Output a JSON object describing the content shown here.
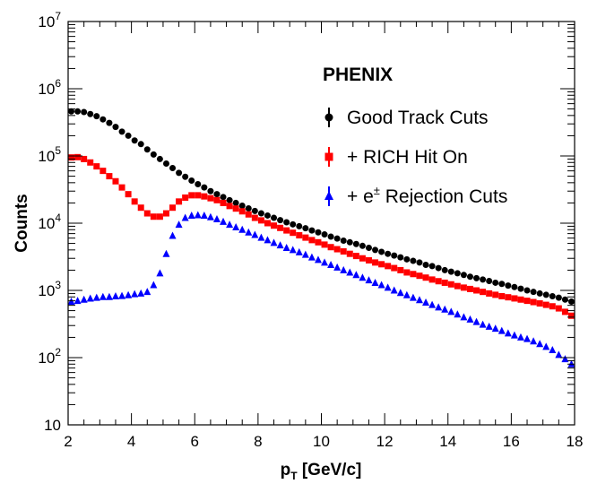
{
  "chart_data": {
    "type": "scatter",
    "x_scale": "linear",
    "y_scale": "log",
    "xlim": [
      2,
      18
    ],
    "ylim": [
      10,
      10000000
    ],
    "x_ticks": [
      2,
      4,
      6,
      8,
      10,
      12,
      14,
      16,
      18
    ],
    "x_tick_labels": [
      "2",
      "4",
      "6",
      "8",
      "10",
      "12",
      "14",
      "16",
      "18"
    ],
    "y_ticks": [
      10,
      100,
      1000,
      10000,
      100000,
      1000000,
      10000000
    ],
    "y_tick_labels": [
      {
        "base": "10",
        "exp": ""
      },
      {
        "base": "10",
        "exp": "2"
      },
      {
        "base": "10",
        "exp": "3"
      },
      {
        "base": "10",
        "exp": "4"
      },
      {
        "base": "10",
        "exp": "5"
      },
      {
        "base": "10",
        "exp": "6"
      },
      {
        "base": "10",
        "exp": "7"
      }
    ],
    "xlabel": {
      "main": "p",
      "sub": "T",
      "rest": " [GeV/c]"
    },
    "ylabel": "Counts",
    "grid": false,
    "legend_position": "top-right",
    "legend_header": "PHENIX",
    "series": [
      {
        "name": "Good Track Cuts",
        "marker": "circle",
        "color": "#000000",
        "x": [
          2.1,
          2.3,
          2.5,
          2.7,
          2.9,
          3.1,
          3.3,
          3.5,
          3.7,
          3.9,
          4.1,
          4.3,
          4.5,
          4.7,
          4.9,
          5.1,
          5.3,
          5.5,
          5.7,
          5.9,
          6.1,
          6.3,
          6.5,
          6.7,
          6.9,
          7.1,
          7.3,
          7.5,
          7.7,
          7.9,
          8.1,
          8.3,
          8.5,
          8.7,
          8.9,
          9.1,
          9.3,
          9.5,
          9.7,
          9.9,
          10.1,
          10.3,
          10.5,
          10.7,
          10.9,
          11.1,
          11.3,
          11.5,
          11.7,
          11.9,
          12.1,
          12.3,
          12.5,
          12.7,
          12.9,
          13.1,
          13.3,
          13.5,
          13.7,
          13.9,
          14.1,
          14.3,
          14.5,
          14.7,
          14.9,
          15.1,
          15.3,
          15.5,
          15.7,
          15.9,
          16.1,
          16.3,
          16.5,
          16.7,
          16.9,
          17.1,
          17.3,
          17.5,
          17.7,
          17.9
        ],
        "y": [
          460000,
          460000,
          450000,
          420000,
          390000,
          350000,
          310000,
          270000,
          230000,
          200000,
          170000,
          150000,
          125000,
          105000,
          90000,
          77000,
          66000,
          56000,
          49000,
          43000,
          38000,
          34000,
          30000,
          27000,
          24500,
          22000,
          20000,
          18200,
          16600,
          15200,
          14000,
          13000,
          12000,
          11100,
          10300,
          9600,
          9000,
          8400,
          7800,
          7300,
          6800,
          6300,
          5900,
          5500,
          5200,
          4900,
          4600,
          4300,
          4000,
          3750,
          3500,
          3300,
          3100,
          2900,
          2750,
          2600,
          2400,
          2300,
          2150,
          2000,
          1900,
          1800,
          1700,
          1600,
          1520,
          1450,
          1380,
          1300,
          1250,
          1180,
          1120,
          1060,
          1000,
          950,
          900,
          860,
          820,
          780,
          730,
          680
        ]
      },
      {
        "name": "+ RICH Hit On",
        "marker": "square",
        "color": "#ff0000",
        "x": [
          2.1,
          2.3,
          2.5,
          2.7,
          2.9,
          3.1,
          3.3,
          3.5,
          3.7,
          3.9,
          4.1,
          4.3,
          4.5,
          4.7,
          4.9,
          5.1,
          5.3,
          5.5,
          5.7,
          5.9,
          6.1,
          6.3,
          6.5,
          6.7,
          6.9,
          7.1,
          7.3,
          7.5,
          7.7,
          7.9,
          8.1,
          8.3,
          8.5,
          8.7,
          8.9,
          9.1,
          9.3,
          9.5,
          9.7,
          9.9,
          10.1,
          10.3,
          10.5,
          10.7,
          10.9,
          11.1,
          11.3,
          11.5,
          11.7,
          11.9,
          12.1,
          12.3,
          12.5,
          12.7,
          12.9,
          13.1,
          13.3,
          13.5,
          13.7,
          13.9,
          14.1,
          14.3,
          14.5,
          14.7,
          14.9,
          15.1,
          15.3,
          15.5,
          15.7,
          15.9,
          16.1,
          16.3,
          16.5,
          16.7,
          16.9,
          17.1,
          17.3,
          17.5,
          17.7,
          17.9
        ],
        "y": [
          95000,
          96000,
          90000,
          80000,
          70000,
          60000,
          50000,
          42000,
          34000,
          27000,
          21000,
          17000,
          14000,
          12500,
          12500,
          14000,
          17000,
          21000,
          24000,
          26000,
          26000,
          25000,
          23500,
          22000,
          20000,
          18000,
          16500,
          15000,
          13500,
          12000,
          11000,
          10000,
          9200,
          8500,
          7800,
          7200,
          6600,
          6100,
          5600,
          5200,
          4800,
          4400,
          4100,
          3800,
          3500,
          3250,
          3000,
          2800,
          2600,
          2450,
          2300,
          2150,
          2000,
          1850,
          1750,
          1650,
          1550,
          1450,
          1370,
          1300,
          1230,
          1160,
          1100,
          1050,
          1000,
          950,
          900,
          860,
          820,
          790,
          760,
          730,
          700,
          670,
          640,
          610,
          580,
          540,
          480,
          420
        ]
      },
      {
        "name": "+ e± Rejection Cuts",
        "marker": "triangle",
        "color": "#0000ff",
        "x": [
          2.1,
          2.3,
          2.5,
          2.7,
          2.9,
          3.1,
          3.3,
          3.5,
          3.7,
          3.9,
          4.1,
          4.3,
          4.5,
          4.7,
          4.9,
          5.1,
          5.3,
          5.5,
          5.7,
          5.9,
          6.1,
          6.3,
          6.5,
          6.7,
          6.9,
          7.1,
          7.3,
          7.5,
          7.7,
          7.9,
          8.1,
          8.3,
          8.5,
          8.7,
          8.9,
          9.1,
          9.3,
          9.5,
          9.7,
          9.9,
          10.1,
          10.3,
          10.5,
          10.7,
          10.9,
          11.1,
          11.3,
          11.5,
          11.7,
          11.9,
          12.1,
          12.3,
          12.5,
          12.7,
          12.9,
          13.1,
          13.3,
          13.5,
          13.7,
          13.9,
          14.1,
          14.3,
          14.5,
          14.7,
          14.9,
          15.1,
          15.3,
          15.5,
          15.7,
          15.9,
          16.1,
          16.3,
          16.5,
          16.7,
          16.9,
          17.1,
          17.3,
          17.5,
          17.7,
          17.9
        ],
        "y": [
          680,
          700,
          730,
          760,
          780,
          800,
          800,
          820,
          830,
          850,
          880,
          900,
          950,
          1200,
          1800,
          3500,
          6500,
          9500,
          12000,
          13000,
          13200,
          13000,
          12300,
          11500,
          10500,
          9500,
          8700,
          8000,
          7300,
          6700,
          6100,
          5600,
          5100,
          4700,
          4300,
          4000,
          3700,
          3400,
          3100,
          2850,
          2600,
          2400,
          2200,
          2000,
          1850,
          1700,
          1550,
          1420,
          1300,
          1200,
          1100,
          1000,
          920,
          850,
          780,
          720,
          660,
          610,
          560,
          520,
          480,
          440,
          400,
          370,
          340,
          310,
          290,
          270,
          250,
          230,
          215,
          200,
          190,
          175,
          160,
          145,
          130,
          110,
          95,
          80
        ]
      }
    ]
  }
}
